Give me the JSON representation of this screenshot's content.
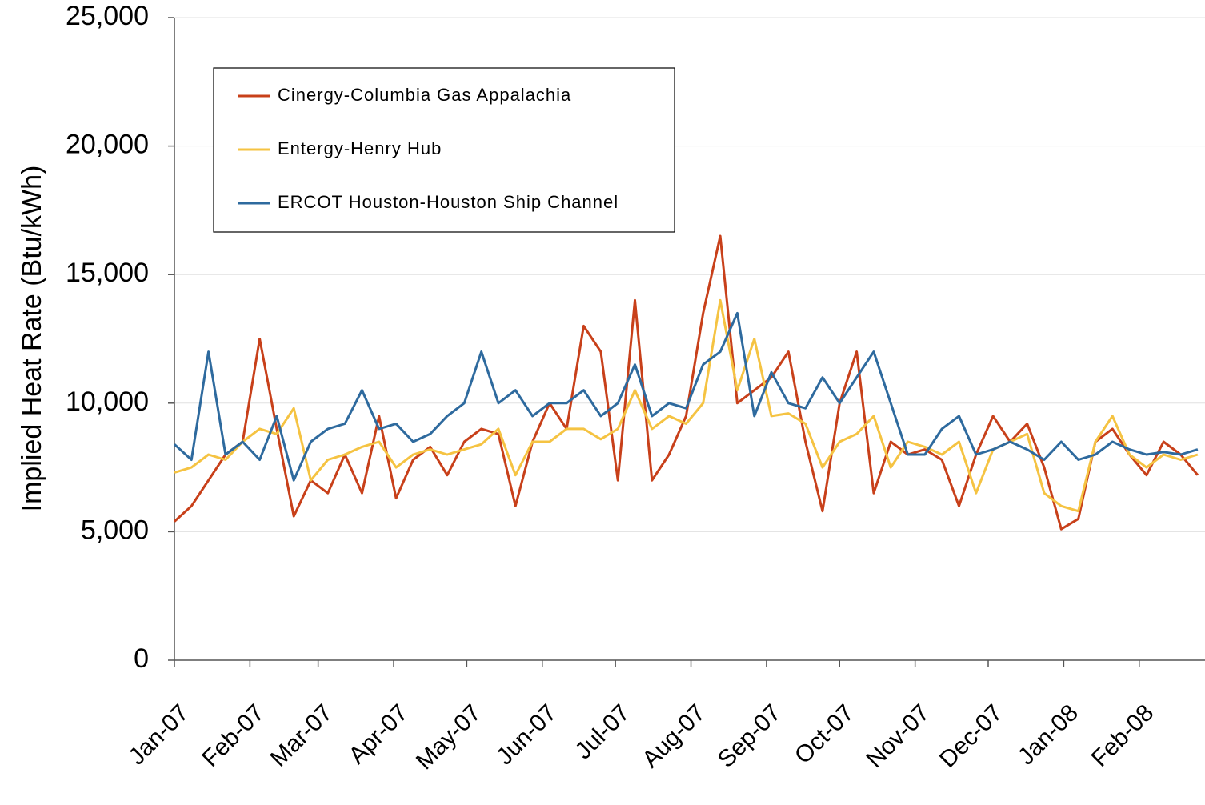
{
  "chart_data": {
    "type": "line",
    "y_label": "Implied Heat Rate (Btu/kWh)",
    "x": [
      0,
      7,
      14,
      21,
      28,
      35,
      42,
      49,
      56,
      63,
      70,
      77,
      84,
      91,
      98,
      105,
      112,
      119,
      126,
      133,
      140,
      147,
      154,
      161,
      168,
      175,
      182,
      189,
      196,
      203,
      210,
      217,
      224,
      231,
      238,
      245,
      252,
      259,
      266,
      273,
      280,
      287,
      294,
      301,
      308,
      315,
      322,
      329,
      336,
      343,
      350,
      357,
      364,
      371,
      378,
      385,
      392,
      399,
      406,
      413,
      420
    ],
    "xlim": [
      0,
      423
    ],
    "xticks": [
      {
        "value": 0,
        "label": "Jan-07"
      },
      {
        "value": 31,
        "label": "Feb-07"
      },
      {
        "value": 59,
        "label": "Mar-07"
      },
      {
        "value": 90,
        "label": "Apr-07"
      },
      {
        "value": 120,
        "label": "May-07"
      },
      {
        "value": 151,
        "label": "Jun-07"
      },
      {
        "value": 181,
        "label": "Jul-07"
      },
      {
        "value": 212,
        "label": "Aug-07"
      },
      {
        "value": 243,
        "label": "Sep-07"
      },
      {
        "value": 273,
        "label": "Oct-07"
      },
      {
        "value": 304,
        "label": "Nov-07"
      },
      {
        "value": 334,
        "label": "Dec-07"
      },
      {
        "value": 365,
        "label": "Jan-08"
      },
      {
        "value": 396,
        "label": "Feb-08"
      }
    ],
    "ylim": [
      0,
      25000
    ],
    "yticks": [
      0,
      {
        "value": 5000,
        "label": "5,000"
      },
      {
        "value": 10000,
        "label": "10,000"
      },
      {
        "value": 15000,
        "label": "15,000"
      },
      {
        "value": 20000,
        "label": "20,000"
      },
      {
        "value": 25000,
        "label": "25,000"
      }
    ],
    "grid": true,
    "legend": "top-left",
    "series": [
      {
        "name": "Cinergy-Columbia Gas Appalachia",
        "color": "#c8401a",
        "values": [
          5400,
          6000,
          7000,
          8000,
          8500,
          12500,
          9000,
          5600,
          7000,
          6500,
          8000,
          6500,
          9500,
          6300,
          7800,
          8300,
          7200,
          8500,
          9000,
          8800,
          6000,
          8500,
          10000,
          9000,
          13000,
          12000,
          7000,
          14000,
          7000,
          8000,
          9500,
          13500,
          16500,
          10000,
          10500,
          11000,
          12000,
          8500,
          5800,
          10000,
          12000,
          6500,
          8500,
          8000,
          8200,
          7800,
          6000,
          8000,
          9500,
          8500,
          9200,
          7500,
          5100,
          5500,
          8500,
          9000,
          8000,
          7200,
          8500,
          8000,
          7200
        ]
      },
      {
        "name": "Entergy-Henry Hub",
        "color": "#f5c342",
        "values": [
          7300,
          7500,
          8000,
          7800,
          8500,
          9000,
          8800,
          9800,
          7000,
          7800,
          8000,
          8300,
          8500,
          7500,
          8000,
          8200,
          8000,
          8200,
          8400,
          9000,
          7200,
          8500,
          8500,
          9000,
          9000,
          8600,
          9000,
          10500,
          9000,
          9500,
          9200,
          10000,
          14000,
          10500,
          12500,
          9500,
          9600,
          9200,
          7500,
          8500,
          8800,
          9500,
          7500,
          8500,
          8300,
          8000,
          8500,
          6500,
          8200,
          8500,
          8800,
          6500,
          6000,
          5800,
          8500,
          9500,
          8000,
          7500,
          8000,
          7800,
          8000
        ]
      },
      {
        "name": "ERCOT Houston-Houston Ship Channel",
        "color": "#2e6a9e",
        "values": [
          8400,
          7800,
          12000,
          8000,
          8500,
          7800,
          9500,
          7000,
          8500,
          9000,
          9200,
          10500,
          9000,
          9200,
          8500,
          8800,
          9500,
          10000,
          12000,
          10000,
          10500,
          9500,
          10000,
          10000,
          10500,
          9500,
          10000,
          11500,
          9500,
          10000,
          9800,
          11500,
          12000,
          13500,
          9500,
          11200,
          10000,
          9800,
          11000,
          10000,
          11000,
          12000,
          10000,
          8000,
          8000,
          9000,
          9500,
          8000,
          8200,
          8500,
          8200,
          7800,
          8500,
          7800,
          8000,
          8500,
          8200,
          8000,
          8100,
          8000,
          8200
        ]
      }
    ]
  }
}
